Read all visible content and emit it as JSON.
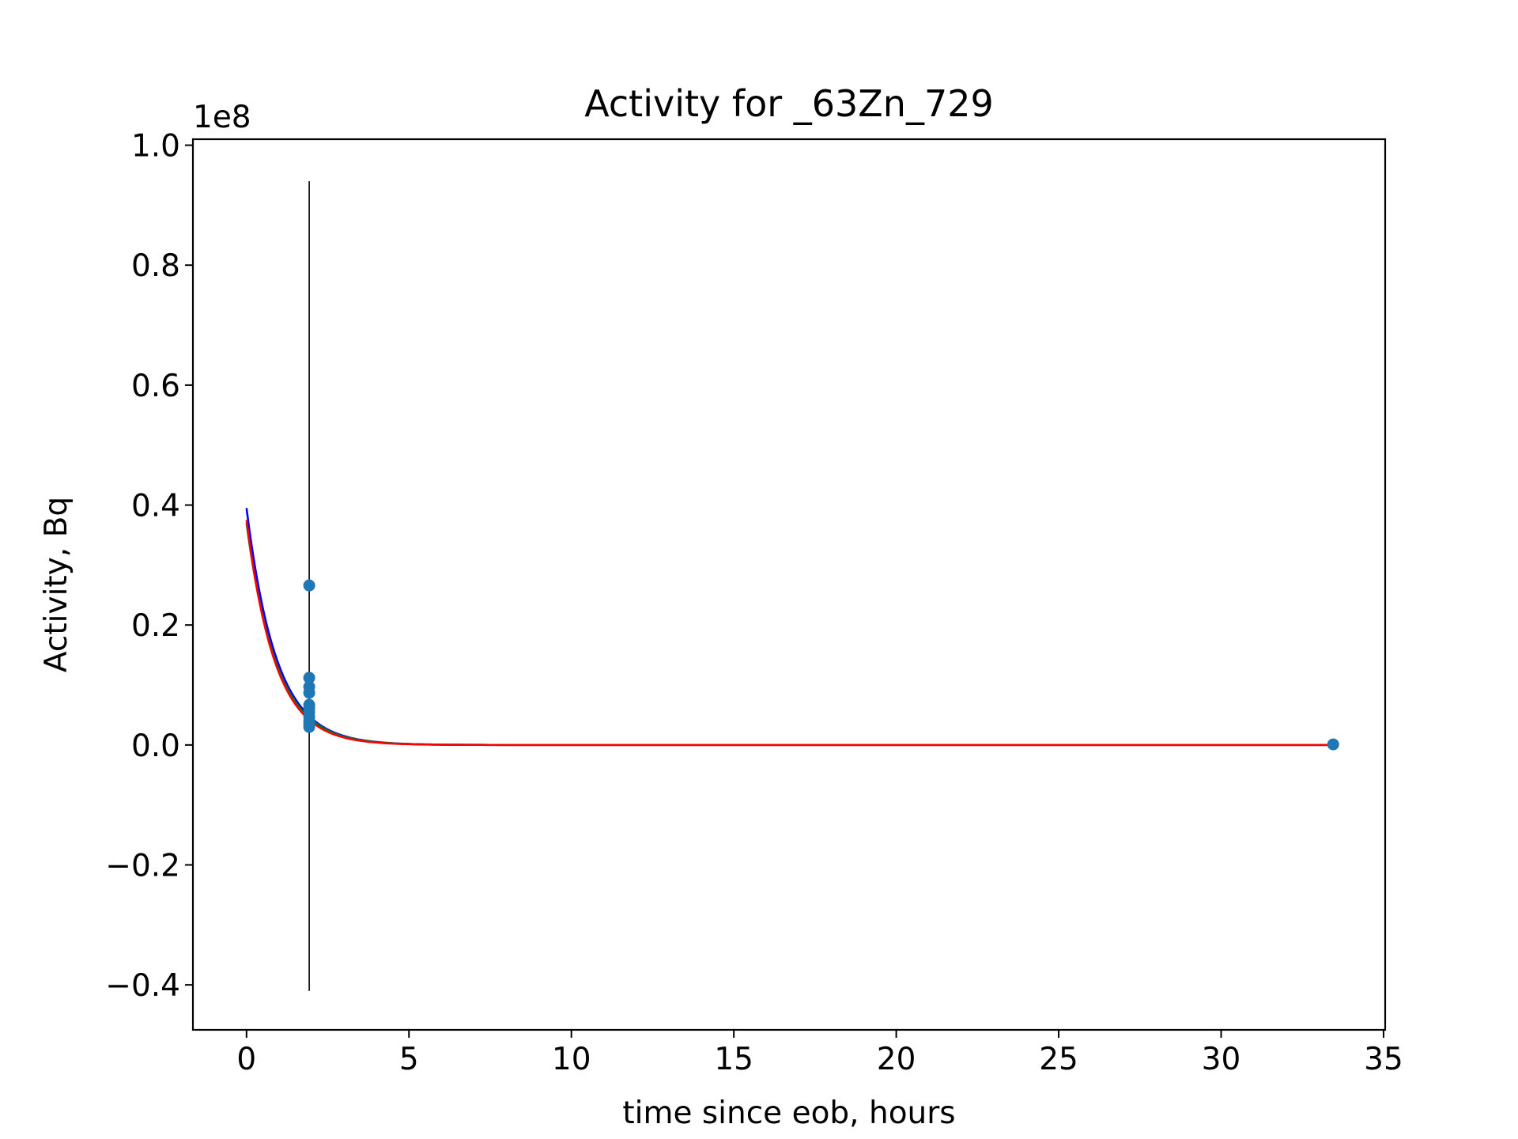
{
  "chart_data": {
    "type": "scatter",
    "title": "Activity for _63Zn_729",
    "xlabel": "time since eob, hours",
    "ylabel": "Activity, Bq",
    "y_offset_label": "1e8",
    "y_scale_factor": 100000000,
    "xlim": [
      -1.65,
      35.05
    ],
    "ylim": [
      -0.475,
      1.01
    ],
    "x_ticks": [
      0,
      5,
      10,
      15,
      20,
      25,
      30,
      35
    ],
    "x_tick_labels": [
      "0",
      "5",
      "10",
      "15",
      "20",
      "25",
      "30",
      "35"
    ],
    "y_ticks": [
      -0.4,
      -0.2,
      0.0,
      0.2,
      0.4,
      0.6,
      0.8,
      1.0
    ],
    "y_tick_labels": [
      "−0.4",
      "−0.2",
      "0.0",
      "0.2",
      "0.4",
      "0.6",
      "0.8",
      "1.0"
    ],
    "grid": false,
    "legend": false,
    "points": {
      "name": "",
      "color": "#1f77b4",
      "x": [
        1.93,
        1.93,
        1.93,
        1.93,
        1.93,
        1.93,
        1.93,
        1.93,
        1.93,
        1.93,
        1.93,
        33.45
      ],
      "y": [
        0.266,
        0.112,
        0.097,
        0.087,
        0.067,
        0.062,
        0.055,
        0.047,
        0.04,
        0.035,
        0.03,
        0.001
      ]
    },
    "error_bars": [
      {
        "x": 1.93,
        "ymin": -0.41,
        "ymax": 0.94,
        "color": "#000000"
      }
    ],
    "fit_curves": [
      {
        "color": "#0000ff",
        "a0": 0.395,
        "half_life_hours": 0.635,
        "x_start": 0.0,
        "x_end": 33.45
      },
      {
        "color": "#008000",
        "a0": 0.37,
        "half_life_hours": 0.635,
        "x_start": 0.0,
        "x_end": 33.45
      },
      {
        "color": "#ff0000",
        "a0": 0.375,
        "half_life_hours": 0.61,
        "x_start": 0.0,
        "x_end": 33.45
      }
    ]
  }
}
